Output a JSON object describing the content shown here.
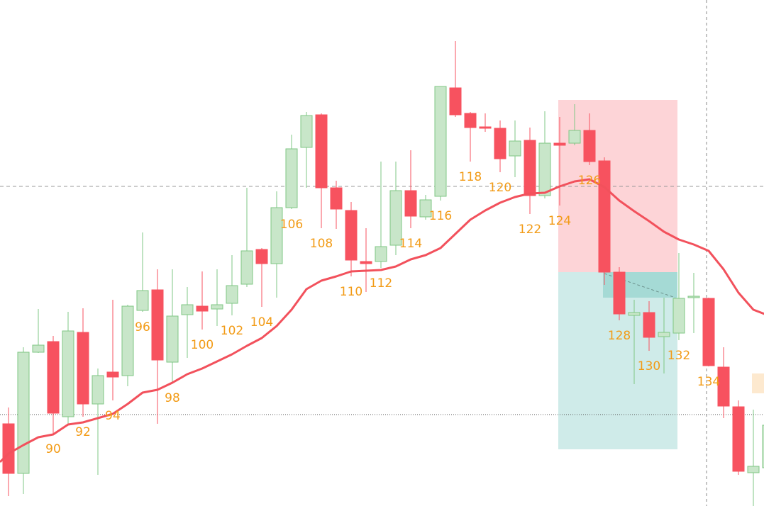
{
  "chart_data": {
    "type": "candlestick",
    "categories": [
      null,
      null,
      null,
      "90",
      null,
      "92",
      null,
      "94",
      null,
      "96",
      null,
      "98",
      null,
      "100",
      null,
      "102",
      null,
      "104",
      null,
      "106",
      null,
      "108",
      null,
      "110",
      null,
      "112",
      null,
      "114",
      null,
      "116",
      null,
      "118",
      null,
      "120",
      null,
      "122",
      null,
      "124",
      null,
      "126",
      null,
      "128",
      null,
      "130",
      null,
      "132",
      null,
      "134",
      null,
      null,
      null,
      null
    ],
    "open": [
      116,
      46,
      217,
      232,
      126,
      245,
      144,
      189,
      184,
      276,
      305,
      203,
      270,
      282,
      278,
      286,
      313,
      362,
      342,
      421,
      506,
      552,
      449,
      417,
      345,
      345,
      368,
      445,
      408,
      437,
      590,
      554,
      535,
      533,
      494,
      516,
      438,
      512,
      512,
      530,
      487,
      330,
      269,
      273,
      239,
      244,
      294,
      293,
      196,
      140,
      47,
      54
    ],
    "high": [
      139,
      224,
      278,
      240,
      274,
      279,
      194,
      291,
      284,
      386,
      334,
      334,
      309,
      331,
      334,
      354,
      449,
      364,
      444,
      524,
      556,
      554,
      459,
      429,
      392,
      486,
      486,
      502,
      439,
      592,
      656,
      556,
      554,
      544,
      544,
      534,
      557,
      549,
      567,
      554,
      492,
      337,
      291,
      289,
      294,
      357,
      329,
      294,
      224,
      149,
      136,
      124
    ],
    "low": [
      14,
      17,
      216,
      102,
      114,
      126,
      44,
      149,
      169,
      274,
      116,
      174,
      209,
      249,
      254,
      269,
      309,
      281,
      294,
      419,
      449,
      392,
      391,
      324,
      302,
      336,
      354,
      392,
      404,
      431,
      549,
      486,
      528,
      471,
      464,
      412,
      434,
      424,
      509,
      481,
      312,
      262,
      172,
      219,
      187,
      234,
      244,
      197,
      124,
      44,
      0,
      44
    ],
    "close": [
      46,
      217,
      227,
      131,
      247,
      144,
      184,
      182,
      282,
      304,
      206,
      268,
      284,
      275,
      284,
      311,
      360,
      342,
      421,
      504,
      551,
      449,
      419,
      347,
      342,
      366,
      445,
      409,
      432,
      592,
      552,
      534,
      533,
      490,
      515,
      438,
      512,
      509,
      530,
      486,
      330,
      271,
      273,
      238,
      245,
      293,
      296,
      198,
      141,
      49,
      56,
      114
    ],
    "colors": {
      "up": "#c8e6c9",
      "up_border": "#7fc784",
      "down": "#f7525f"
    },
    "ma": {
      "color": "#f2515c",
      "values": [
        74,
        86,
        97,
        101,
        115,
        118,
        124,
        130,
        144,
        160,
        164,
        174,
        186,
        194,
        204,
        214,
        226,
        237,
        254,
        277,
        306,
        318,
        324,
        331,
        332,
        333,
        338,
        348,
        354,
        364,
        384,
        404,
        417,
        428,
        436,
        441,
        442,
        451,
        458,
        461,
        450,
        431,
        416,
        402,
        387,
        376,
        369,
        360,
        334,
        301,
        277,
        269
      ]
    },
    "reference_lines": [
      451,
      129
    ],
    "position": {
      "stop": 573,
      "entry": 330,
      "target": 80
    },
    "ylim": [
      0,
      714
    ]
  }
}
